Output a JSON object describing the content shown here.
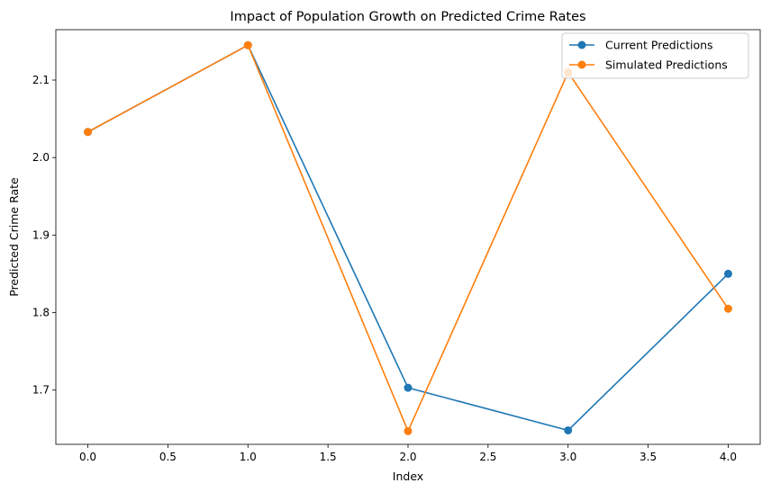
{
  "chart_data": {
    "type": "line",
    "title": "Impact of Population Growth on Predicted Crime Rates",
    "xlabel": "Index",
    "ylabel": "Predicted Crime Rate",
    "x": [
      0,
      1,
      2,
      3,
      4
    ],
    "xlim": [
      -0.2,
      4.2
    ],
    "ylim": [
      1.63,
      2.165
    ],
    "xticks": [
      "0.0",
      "0.5",
      "1.0",
      "1.5",
      "2.0",
      "2.5",
      "3.0",
      "3.5",
      "4.0"
    ],
    "yticks": [
      "1.7",
      "1.8",
      "1.9",
      "2.0",
      "2.1"
    ],
    "grid": false,
    "legend_position": "top-right",
    "series": [
      {
        "name": "Current Predictions",
        "color": "#1f77b4",
        "marker": "circle",
        "values": [
          2.033,
          2.145,
          1.703,
          1.648,
          1.85
        ]
      },
      {
        "name": "Simulated Predictions",
        "color": "#ff7f0e",
        "marker": "circle",
        "values": [
          2.033,
          2.145,
          1.647,
          2.11,
          1.805
        ]
      }
    ]
  }
}
